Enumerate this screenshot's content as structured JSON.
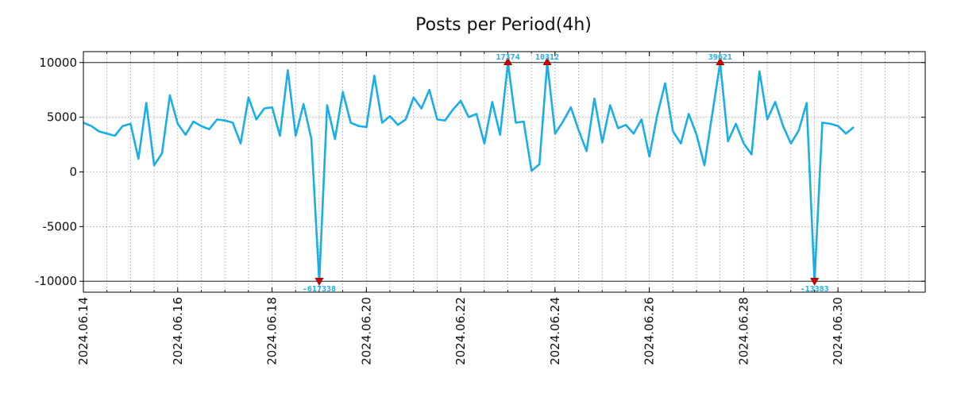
{
  "chart_data": {
    "type": "line",
    "title": "Posts per Period(4h)",
    "xlabel": "",
    "ylabel": "",
    "x_start_day": 0,
    "x_step_days": 0.1667,
    "xlim_days": [
      0,
      17.85
    ],
    "ylim": [
      -11000,
      11000
    ],
    "clip_lines": [
      10000,
      -10000
    ],
    "yticks": [
      10000,
      5000,
      0,
      -5000,
      -10000
    ],
    "ytick_labels": [
      "10000",
      "5000",
      "0",
      "-5000",
      "-10000"
    ],
    "xticks_days": [
      0,
      2,
      4,
      6,
      8,
      10,
      12,
      14,
      16
    ],
    "xtick_labels": [
      "2024.06.14",
      "2024.06.16",
      "2024.06.18",
      "2024.06.20",
      "2024.06.22",
      "2024.06.24",
      "2024.06.26",
      "2024.06.28",
      "2024.06.30"
    ],
    "grid": true,
    "series_color": "#1aaee8",
    "marker_color": "#cc0000",
    "annotation_color": "#1aaee8",
    "values": [
      4500,
      4200,
      3700,
      3500,
      3300,
      4200,
      4400,
      1200,
      6300,
      600,
      1700,
      7000,
      4400,
      3400,
      4600,
      4200,
      3900,
      4800,
      4700,
      4500,
      2600,
      6800,
      4800,
      5800,
      5900,
      3300,
      9300,
      3300,
      6200,
      3000,
      -10000,
      6100,
      3000,
      7300,
      4500,
      4200,
      4100,
      8800,
      4500,
      5100,
      4300,
      4800,
      6800,
      5800,
      7500,
      4800,
      4700,
      5700,
      6500,
      5000,
      5300,
      2600,
      6400,
      3400,
      10000,
      4500,
      4600,
      100,
      700,
      10000,
      3500,
      4600,
      5900,
      3800,
      1900,
      6700,
      2700,
      6100,
      4000,
      4300,
      3500,
      4800,
      1400,
      5200,
      8100,
      3700,
      2600,
      5300,
      3400,
      600,
      null,
      10000,
      2800,
      4400,
      2600,
      1600,
      9200,
      4800,
      6400,
      4200,
      2600,
      3800,
      6300,
      -10000,
      4500,
      4400,
      4200,
      3500,
      4100
    ],
    "gap_bridge": {
      "from_index": 79,
      "to_index": 81
    },
    "annotations": [
      {
        "index": 30,
        "label": "-617338",
        "direction": "down"
      },
      {
        "index": 54,
        "label": "17374",
        "direction": "up"
      },
      {
        "index": 59,
        "label": "10312",
        "direction": "up"
      },
      {
        "index": 81,
        "label": "39621",
        "direction": "up"
      },
      {
        "index": 93,
        "label": "-13383",
        "direction": "down"
      }
    ]
  }
}
